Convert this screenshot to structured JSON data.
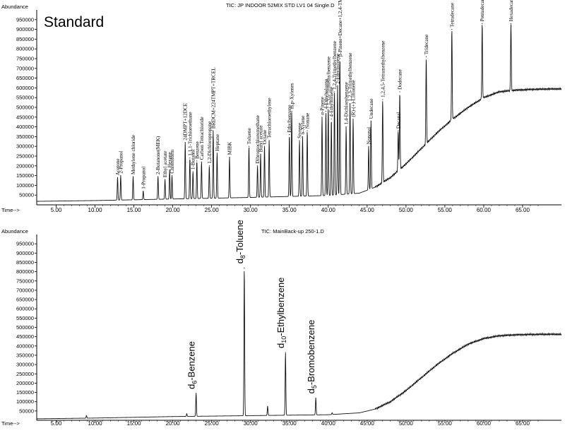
{
  "chart_data": [
    {
      "type": "line",
      "title": "TIC: JP INDOOR 52MIX STD LV1 04 Single.D",
      "label": "Standard",
      "ylabel": "Abundance",
      "xlabel": "Time-->",
      "xlim": [
        2.5,
        70
      ],
      "ylim": [
        0,
        1000000
      ],
      "x_ticks": [
        "5.00",
        "10.00",
        "15.00",
        "20.00",
        "25.00",
        "30.00",
        "35.00",
        "40.00",
        "45.00",
        "50.00",
        "55.00",
        "60.00",
        "65.00"
      ],
      "y_ticks": [
        "50000",
        "100000",
        "150000",
        "200000",
        "250000",
        "300000",
        "350000",
        "400000",
        "450000",
        "500000",
        "550000",
        "600000",
        "650000",
        "700000",
        "750000",
        "800000",
        "850000",
        "900000",
        "950000"
      ],
      "baseline": [
        [
          2.5,
          18000
        ],
        [
          10,
          22000
        ],
        [
          20,
          30000
        ],
        [
          30,
          38000
        ],
        [
          40,
          48000
        ],
        [
          44,
          60000
        ],
        [
          46,
          90000
        ],
        [
          48,
          140000
        ],
        [
          50,
          210000
        ],
        [
          52,
          290000
        ],
        [
          54,
          370000
        ],
        [
          56,
          440000
        ],
        [
          58,
          500000
        ],
        [
          60,
          550000
        ],
        [
          62,
          580000
        ],
        [
          64,
          588000
        ],
        [
          66,
          592000
        ],
        [
          68,
          594000
        ],
        [
          70,
          595000
        ]
      ],
      "peaks": [
        {
          "x": 12.9,
          "y": 140000,
          "label": "Acetone"
        },
        {
          "x": 13.3,
          "y": 150000,
          "label": "2-Propanol"
        },
        {
          "x": 14.9,
          "y": 145000,
          "label": "Methylene chloride"
        },
        {
          "x": 16.2,
          "y": 70000,
          "label": "1-Propanol"
        },
        {
          "x": 18.1,
          "y": 145000,
          "label": "2-Butanone(MEK)"
        },
        {
          "x": 19.0,
          "y": 130000,
          "label": "Ethyl acetate"
        },
        {
          "x": 19.6,
          "y": 180000,
          "label": "Hexane"
        },
        {
          "x": 19.9,
          "y": 150000,
          "label": "Chloroform"
        },
        {
          "x": 21.6,
          "y": 320000,
          "label": "24DMPT+12DCE"
        },
        {
          "x": 22.2,
          "y": 240000,
          "label": "1,1,1-Trichloroethane"
        },
        {
          "x": 22.6,
          "y": 170000,
          "label": "1-Butanol"
        },
        {
          "x": 23.1,
          "y": 225000,
          "label": "Benzene"
        },
        {
          "x": 23.7,
          "y": 220000,
          "label": "Carbon Tetrachloride"
        },
        {
          "x": 24.7,
          "y": 200000,
          "label": "1,2-Dichloropropane"
        },
        {
          "x": 25.2,
          "y": 380000,
          "label": "BRDCM+224TMPT+TRCEL"
        },
        {
          "x": 25.7,
          "y": 265000,
          "label": "Heptane"
        },
        {
          "x": 27.3,
          "y": 245000,
          "label": "MIBK"
        },
        {
          "x": 29.8,
          "y": 300000,
          "label": "Toluene"
        },
        {
          "x": 30.9,
          "y": 200000,
          "label": "Dibromochloromethane"
        },
        {
          "x": 31.3,
          "y": 260000,
          "label": "Butyl acetate"
        },
        {
          "x": 31.8,
          "y": 300000,
          "label": "Octane"
        },
        {
          "x": 32.4,
          "y": 330000,
          "label": "Tetrachloroethylene"
        },
        {
          "x": 35.0,
          "y": 360000,
          "label": "Ethylbenzene"
        },
        {
          "x": 35.3,
          "y": 480000,
          "label": "m,p-Xylenes"
        },
        {
          "x": 36.3,
          "y": 330000,
          "label": "Styrene"
        },
        {
          "x": 36.7,
          "y": 350000,
          "label": "o-Xylene"
        },
        {
          "x": 37.3,
          "y": 380000,
          "label": "Nonane"
        },
        {
          "x": 39.2,
          "y": 450000,
          "label": "α-Pinene"
        },
        {
          "x": 39.7,
          "y": 480000,
          "label": "4-Ethyltoluene"
        },
        {
          "x": 40.0,
          "y": 500000,
          "label": "1,3,5-Trimethylbenzene"
        },
        {
          "x": 40.4,
          "y": 440000,
          "label": "4-Ethyltoluene"
        },
        {
          "x": 40.8,
          "y": 580000,
          "label": "1,2,4-Trimethylbenzene"
        },
        {
          "x": 41.2,
          "y": 610000,
          "label": "2-Ethyltoluene"
        },
        {
          "x": 41.5,
          "y": 750000,
          "label": "β-Pinene+Decane+1,2,4-TMB"
        },
        {
          "x": 42.3,
          "y": 400000,
          "label": "1,4-Dichlorobenzene"
        },
        {
          "x": 42.8,
          "y": 520000,
          "label": "1,2,3-Trimethylbenzene"
        },
        {
          "x": 43.2,
          "y": 440000,
          "label": "(R)-(+)-Limonene"
        },
        {
          "x": 45.2,
          "y": 300000,
          "label": "Nonanal"
        },
        {
          "x": 45.5,
          "y": 430000,
          "label": "Undecane"
        },
        {
          "x": 47.0,
          "y": 540000,
          "label": "1,2,4,5-Tetramethylbenzene"
        },
        {
          "x": 49.0,
          "y": 380000,
          "label": "Decanal"
        },
        {
          "x": 49.2,
          "y": 580000,
          "label": "Dodecane"
        },
        {
          "x": 52.6,
          "y": 760000,
          "label": "Tridecane"
        },
        {
          "x": 55.9,
          "y": 900000,
          "label": "Tetradecane"
        },
        {
          "x": 59.8,
          "y": 930000,
          "label": "Pentadecane"
        },
        {
          "x": 63.5,
          "y": 930000,
          "label": "Hexadecane"
        }
      ]
    },
    {
      "type": "line",
      "title": "TIC: MainBack-up 250-1.D",
      "ylabel": "Abundance",
      "xlabel": "Time-->",
      "xlim": [
        2.5,
        70
      ],
      "ylim": [
        0,
        1000000
      ],
      "x_ticks": [
        "5.00",
        "10.00",
        "15.00",
        "20.00",
        "25.00",
        "30.00",
        "35.00",
        "40.00",
        "45.00",
        "50.00",
        "55.00",
        "60.00",
        "65.00"
      ],
      "y_ticks": [
        "50000",
        "100000",
        "150000",
        "200000",
        "250000",
        "300000",
        "350000",
        "400000",
        "450000",
        "500000",
        "550000",
        "600000",
        "650000",
        "700000",
        "750000",
        "800000",
        "850000",
        "900000",
        "950000"
      ],
      "baseline": [
        [
          2.5,
          8000
        ],
        [
          10,
          12000
        ],
        [
          20,
          20000
        ],
        [
          30,
          25000
        ],
        [
          40,
          30000
        ],
        [
          44,
          40000
        ],
        [
          46,
          60000
        ],
        [
          48,
          100000
        ],
        [
          50,
          160000
        ],
        [
          52,
          230000
        ],
        [
          54,
          300000
        ],
        [
          56,
          360000
        ],
        [
          58,
          410000
        ],
        [
          60,
          440000
        ],
        [
          62,
          455000
        ],
        [
          64,
          460000
        ],
        [
          66,
          462000
        ],
        [
          68,
          463000
        ],
        [
          70,
          463000
        ]
      ],
      "peaks": [
        {
          "x": 8.9,
          "y": 25000,
          "label": ""
        },
        {
          "x": 21.8,
          "y": 35000,
          "label": ""
        },
        {
          "x": 23.0,
          "y": 145000,
          "label": ""
        },
        {
          "x": 29.2,
          "y": 820000,
          "label": ""
        },
        {
          "x": 32.2,
          "y": 75000,
          "label": ""
        },
        {
          "x": 34.5,
          "y": 365000,
          "label": ""
        },
        {
          "x": 38.4,
          "y": 120000,
          "label": ""
        },
        {
          "x": 40.5,
          "y": 40000,
          "label": ""
        }
      ],
      "annotations": [
        {
          "x": 23.0,
          "y": 145000,
          "label": "d6-Benzene",
          "base": "d",
          "sub": "6",
          "rest": "-Benzene"
        },
        {
          "x": 29.2,
          "y": 820000,
          "label": "d8-Toluene",
          "base": "d",
          "sub": "8",
          "rest": "-Toluene"
        },
        {
          "x": 34.5,
          "y": 365000,
          "label": "d10-Ethylbenzene",
          "base": "d",
          "sub": "10",
          "rest": "-Ethylbenzene"
        },
        {
          "x": 38.4,
          "y": 120000,
          "label": "d5-Bromobenzene",
          "base": "d",
          "sub": "5",
          "rest": "-Bromobenzene"
        }
      ]
    }
  ]
}
